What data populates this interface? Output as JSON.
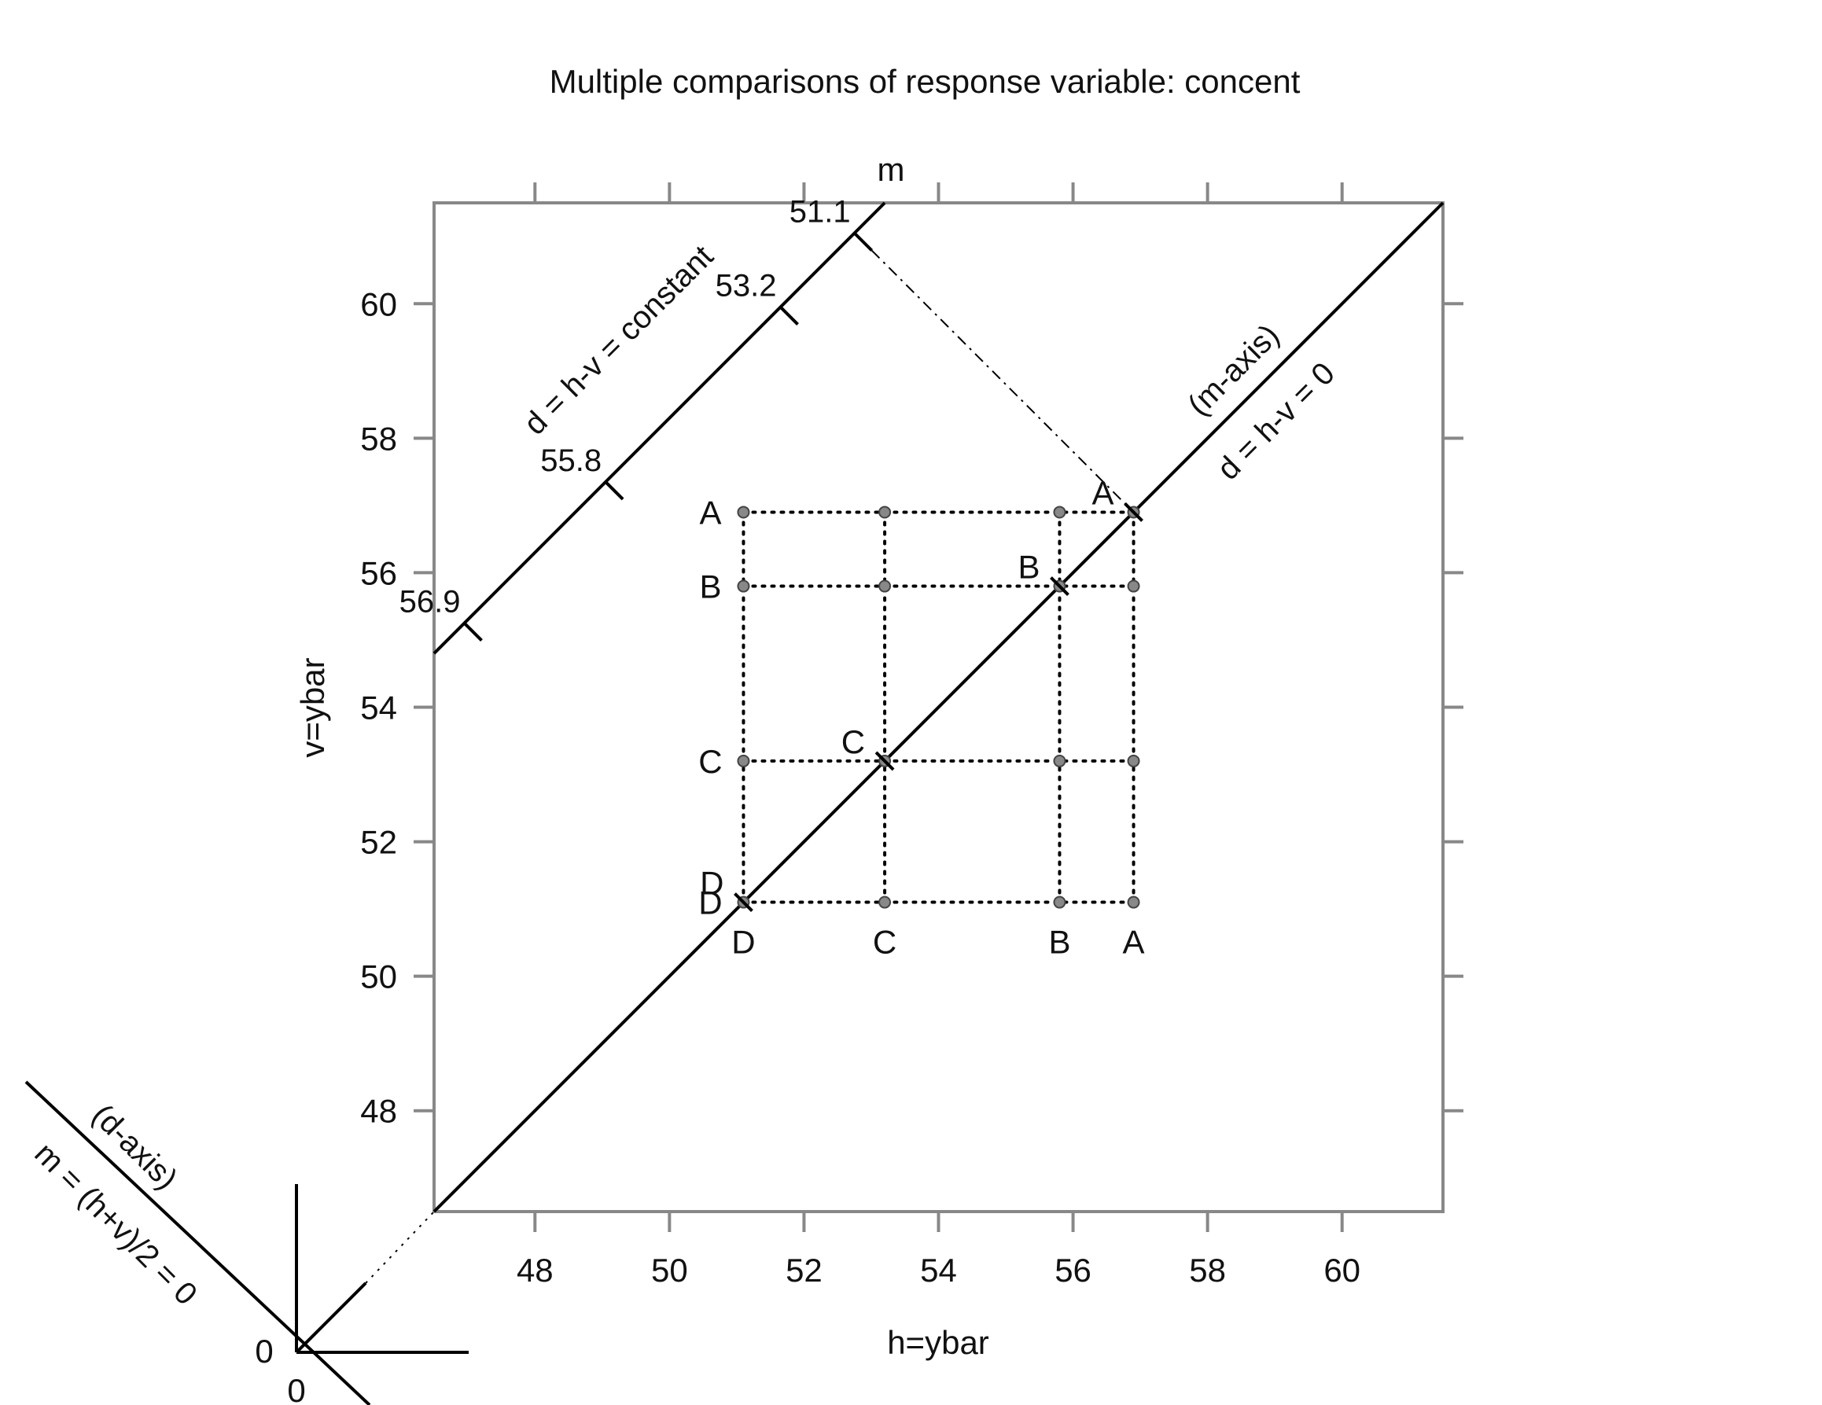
{
  "chart_data": {
    "type": "scatter",
    "subtype": "mean-mean multiple comparisons (mmc) plot",
    "title": "Multiple comparisons of response variable: concent",
    "xlabel": "h=ybar",
    "ylabel": "v=ybar",
    "top_axis_label": "m",
    "xlim": [
      46.5,
      61.5
    ],
    "ylim": [
      46.5,
      61.5
    ],
    "x_ticks": [
      48,
      50,
      52,
      54,
      56,
      58,
      60
    ],
    "y_ticks": [
      48,
      50,
      52,
      54,
      56,
      58,
      60
    ],
    "top_ticks": [
      48,
      50,
      52,
      54,
      56,
      58,
      60
    ],
    "right_ticks": [
      48,
      50,
      52,
      54,
      56,
      58,
      60
    ],
    "grid": false,
    "groups": [
      {
        "name": "A",
        "mean": 56.9
      },
      {
        "name": "B",
        "mean": 55.8
      },
      {
        "name": "C",
        "mean": 53.2
      },
      {
        "name": "D",
        "mean": 51.1
      }
    ],
    "m_axis_labels": [
      "51.1",
      "53.2",
      "55.8",
      "56.9"
    ],
    "d_offset": -8.3,
    "line_labels": {
      "m_axis": "(m-axis)",
      "diagonal": "d = h-v = 0",
      "parallel": "d = h-v = constant",
      "d_axis": "(d-axis)",
      "d_axis_eq": "m = (h+v)/2 = 0"
    },
    "origin_labels": {
      "h": "0",
      "v": "0"
    }
  }
}
